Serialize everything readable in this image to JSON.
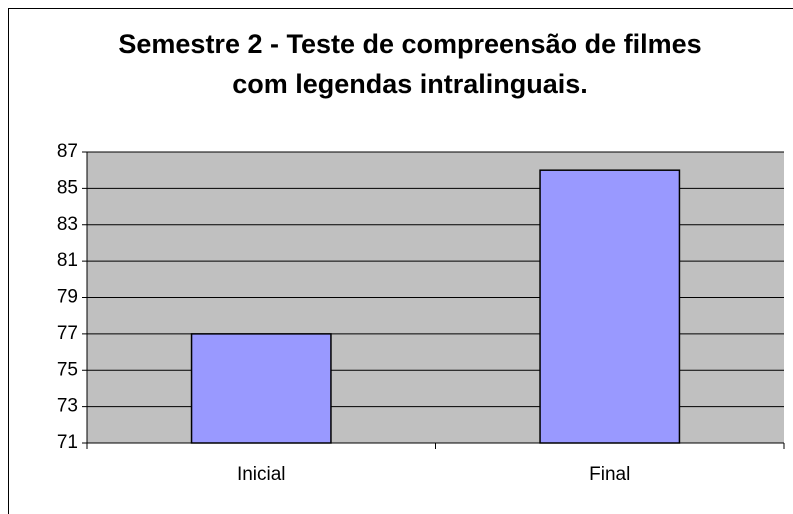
{
  "chart_data": {
    "type": "bar",
    "title": "Semestre 2 - Teste de compreensão de filmes com legendas intralinguais.",
    "categories": [
      "Inicial",
      "Final"
    ],
    "values": [
      77,
      86
    ],
    "color": "#9999ff",
    "plot_background": "#c0c0c0",
    "ylim": [
      71,
      87
    ],
    "yticks": [
      71,
      73,
      75,
      77,
      79,
      81,
      83,
      85,
      87
    ],
    "grid": true
  }
}
